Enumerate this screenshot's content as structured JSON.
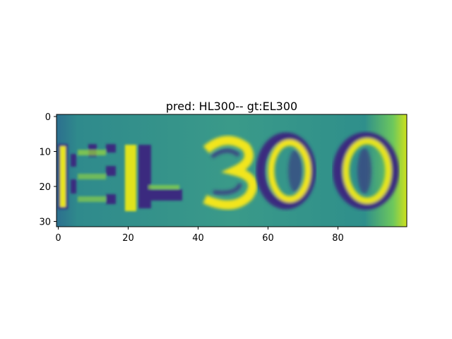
{
  "figure": {
    "title": "pred: HL300-- gt:EL300"
  },
  "image": {
    "text": "EL300",
    "colormap": "viridis",
    "x_range": [
      0,
      100
    ],
    "y_range": [
      0,
      32
    ]
  },
  "axes": {
    "x_ticks": [
      {
        "value": 0,
        "label": "0"
      },
      {
        "value": 20,
        "label": "20"
      },
      {
        "value": 40,
        "label": "40"
      },
      {
        "value": 60,
        "label": "60"
      },
      {
        "value": 80,
        "label": "80"
      }
    ],
    "y_ticks": [
      {
        "value": 0,
        "label": "0"
      },
      {
        "value": 10,
        "label": "10"
      },
      {
        "value": 20,
        "label": "20"
      },
      {
        "value": 30,
        "label": "30"
      }
    ]
  },
  "colors": {
    "background": "#31888c",
    "dark": "#3b2b7f",
    "bright": "#cde11d",
    "yellow": "#f2e51d",
    "mid": "#3fa88a"
  }
}
